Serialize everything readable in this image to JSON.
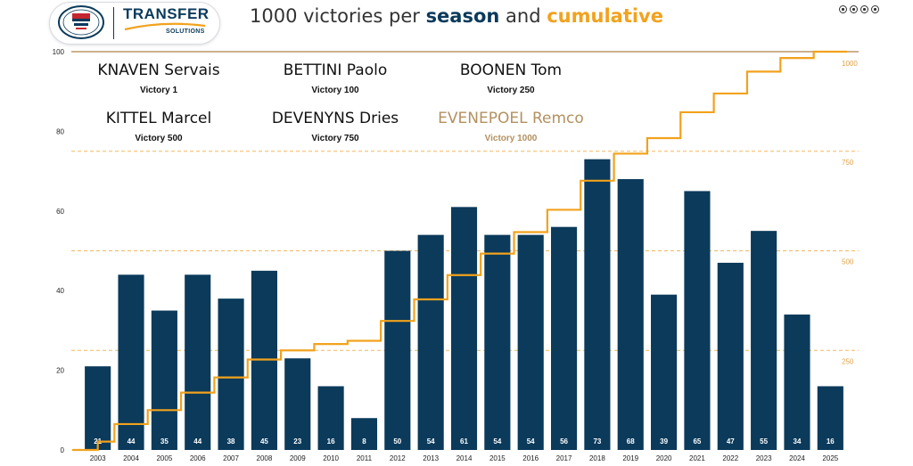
{
  "logo": {
    "transfer": "TRANSFER",
    "solutions": "SOLUTIONS"
  },
  "title": {
    "part1": "1000 victories per ",
    "kw1": "season",
    "part2": " and ",
    "kw2": "cumulative"
  },
  "milestones": [
    {
      "name": "KNAVEN Servais",
      "victory": "Victory 1"
    },
    {
      "name": "BETTINI Paolo",
      "victory": "Victory 100"
    },
    {
      "name": "BOONEN Tom",
      "victory": "Victory 250"
    },
    {
      "name": "KITTEL Marcel",
      "victory": "Victory 500"
    },
    {
      "name": "DEVENYNS Dries",
      "victory": "Victory 750"
    },
    {
      "name": "EVENEPOEL Remco",
      "victory": "Victory 1000"
    }
  ],
  "colors": {
    "bar": "#0b3a5b",
    "cumulative": "#f2a21d",
    "reference": "#f0b860",
    "highlight": "#b39160"
  },
  "chart_data": {
    "type": "bar",
    "categories": [
      "2003",
      "2004",
      "2005",
      "2006",
      "2007",
      "2008",
      "2009",
      "2010",
      "2011",
      "2012",
      "2013",
      "2014",
      "2015",
      "2016",
      "2017",
      "2018",
      "2019",
      "2020",
      "2021",
      "2022",
      "2023",
      "2024",
      "2025"
    ],
    "series": [
      {
        "values": [
          21,
          44,
          35,
          44,
          38,
          45,
          23,
          16,
          8,
          50,
          54,
          61,
          54,
          54,
          56,
          73,
          68,
          39,
          65,
          47,
          55,
          34,
          16
        ]
      },
      {
        "values": [
          21,
          65,
          100,
          144,
          182,
          227,
          250,
          266,
          274,
          324,
          378,
          439,
          493,
          547,
          603,
          676,
          744,
          783,
          848,
          895,
          950,
          984,
          1000
        ]
      }
    ],
    "ylim": [
      0,
      100
    ],
    "y_ticks": [
      0,
      20,
      40,
      60,
      80,
      100
    ],
    "y2lim": [
      0,
      1000
    ],
    "reference_lines": [
      250,
      500,
      750,
      1000
    ],
    "grid": false
  }
}
